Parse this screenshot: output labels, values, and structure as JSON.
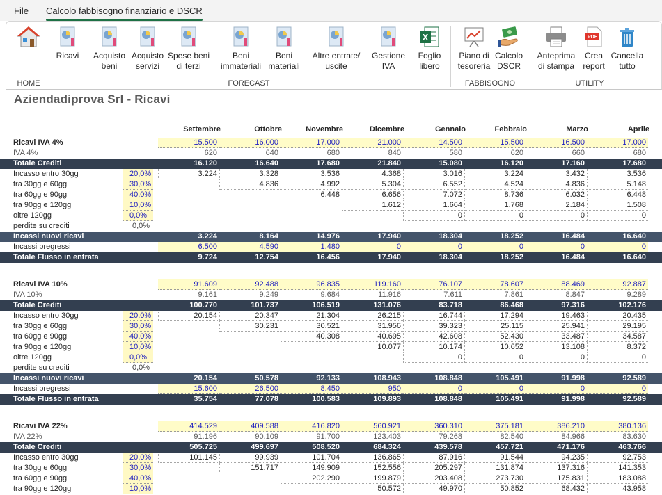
{
  "tabs": {
    "file": "File",
    "active": "Calcolo fabbisogno finanziario e DSCR"
  },
  "ribbon": {
    "home": {
      "group": "HOME"
    },
    "forecast": {
      "group": "FORECAST",
      "buttons": [
        {
          "l1": "Ricavi",
          "l2": ""
        },
        {
          "l1": "Acquisto",
          "l2": "beni"
        },
        {
          "l1": "Acquisto",
          "l2": "servizi"
        },
        {
          "l1": "Spese beni",
          "l2": "di terzi"
        },
        {
          "l1": "Beni",
          "l2": "immateriali"
        },
        {
          "l1": "Beni",
          "l2": "materiali"
        },
        {
          "l1": "Altre entrate/",
          "l2": "uscite"
        },
        {
          "l1": "Gestione",
          "l2": "IVA"
        },
        {
          "l1": "Foglio",
          "l2": "libero"
        }
      ]
    },
    "fabbisogno": {
      "group": "FABBISOGNO",
      "buttons": [
        {
          "l1": "Piano di",
          "l2": "tesoreria"
        },
        {
          "l1": "Calcolo",
          "l2": "DSCR"
        }
      ]
    },
    "utility": {
      "group": "UTILITY",
      "buttons": [
        {
          "l1": "Anteprima",
          "l2": "di stampa"
        },
        {
          "l1": "Crea",
          "l2": "report"
        },
        {
          "l1": "Cancella",
          "l2": "tutto"
        }
      ]
    }
  },
  "sheet": {
    "title": "Aziendadiprova Srl - Ricavi",
    "months": [
      "Settembre",
      "Ottobre",
      "Novembre",
      "Dicembre",
      "Gennaio",
      "Febbraio",
      "Marzo",
      "Aprile"
    ],
    "rows": [
      {
        "type": "head",
        "label": "Ricavi IVA 4%",
        "values": [
          "15.500",
          "16.000",
          "17.000",
          "21.000",
          "14.500",
          "15.500",
          "16.500",
          "17.000"
        ]
      },
      {
        "type": "sub",
        "label": "IVA 4%",
        "values": [
          "620",
          "640",
          "680",
          "840",
          "580",
          "620",
          "660",
          "680"
        ]
      },
      {
        "type": "dark",
        "label": "Totale Crediti",
        "values": [
          "16.120",
          "16.640",
          "17.680",
          "21.840",
          "15.080",
          "16.120",
          "17.160",
          "17.680"
        ]
      },
      {
        "type": "inc",
        "label": "Incasso entro 30gg",
        "pct": "20,0%",
        "start": 0,
        "values": [
          "3.224",
          "3.328",
          "3.536",
          "4.368",
          "3.016",
          "3.224",
          "3.432",
          "3.536"
        ]
      },
      {
        "type": "inc",
        "label": "tra 30gg e 60gg",
        "pct": "30,0%",
        "start": 1,
        "values": [
          "",
          "4.836",
          "4.992",
          "5.304",
          "6.552",
          "4.524",
          "4.836",
          "5.148"
        ]
      },
      {
        "type": "inc",
        "label": "tra 60gg e 90gg",
        "pct": "40,0%",
        "start": 2,
        "values": [
          "",
          "",
          "6.448",
          "6.656",
          "7.072",
          "8.736",
          "6.032",
          "6.448"
        ]
      },
      {
        "type": "inc",
        "label": "tra 90gg e 120gg",
        "pct": "10,0%",
        "start": 3,
        "values": [
          "",
          "",
          "",
          "1.612",
          "1.664",
          "1.768",
          "2.184",
          "1.508"
        ]
      },
      {
        "type": "inc",
        "label": "oltre 120gg",
        "pct": "0,0%",
        "start": 4,
        "values": [
          "",
          "",
          "",
          "",
          "0",
          "0",
          "0",
          "0"
        ]
      },
      {
        "type": "perd",
        "label": "perdite su crediti",
        "pct": "0,0%",
        "values": [
          "",
          "",
          "",
          "",
          "",
          "",
          "",
          ""
        ]
      },
      {
        "type": "dark2",
        "label": "Incassi nuovi ricavi",
        "values": [
          "3.224",
          "8.164",
          "14.976",
          "17.940",
          "18.304",
          "18.252",
          "16.484",
          "16.640"
        ]
      },
      {
        "type": "inp",
        "label": "Incassi pregressi",
        "values": [
          "6.500",
          "4.590",
          "1.480",
          "0",
          "0",
          "0",
          "0",
          "0"
        ]
      },
      {
        "type": "dark",
        "label": "Totale Flusso in entrata",
        "values": [
          "9.724",
          "12.754",
          "16.456",
          "17.940",
          "18.304",
          "18.252",
          "16.484",
          "16.640"
        ]
      },
      {
        "type": "head",
        "label": "Ricavi IVA 10%",
        "values": [
          "91.609",
          "92.488",
          "96.835",
          "119.160",
          "76.107",
          "78.607",
          "88.469",
          "92.887"
        ]
      },
      {
        "type": "sub",
        "label": "IVA 10%",
        "values": [
          "9.161",
          "9.249",
          "9.684",
          "11.916",
          "7.611",
          "7.861",
          "8.847",
          "9.289"
        ]
      },
      {
        "type": "dark",
        "label": "Totale Crediti",
        "values": [
          "100.770",
          "101.737",
          "106.519",
          "131.076",
          "83.718",
          "86.468",
          "97.316",
          "102.176"
        ]
      },
      {
        "type": "inc",
        "label": "Incasso entro 30gg",
        "pct": "20,0%",
        "start": 0,
        "values": [
          "20.154",
          "20.347",
          "21.304",
          "26.215",
          "16.744",
          "17.294",
          "19.463",
          "20.435"
        ]
      },
      {
        "type": "inc",
        "label": "tra 30gg e 60gg",
        "pct": "30,0%",
        "start": 1,
        "values": [
          "",
          "30.231",
          "30.521",
          "31.956",
          "39.323",
          "25.115",
          "25.941",
          "29.195"
        ]
      },
      {
        "type": "inc",
        "label": "tra 60gg e 90gg",
        "pct": "40,0%",
        "start": 2,
        "values": [
          "",
          "",
          "40.308",
          "40.695",
          "42.608",
          "52.430",
          "33.487",
          "34.587"
        ]
      },
      {
        "type": "inc",
        "label": "tra 90gg e 120gg",
        "pct": "10,0%",
        "start": 3,
        "values": [
          "",
          "",
          "",
          "10.077",
          "10.174",
          "10.652",
          "13.108",
          "8.372"
        ]
      },
      {
        "type": "inc",
        "label": "oltre 120gg",
        "pct": "0,0%",
        "start": 4,
        "values": [
          "",
          "",
          "",
          "",
          "0",
          "0",
          "0",
          "0"
        ]
      },
      {
        "type": "perd",
        "label": "perdite su crediti",
        "pct": "0,0%",
        "values": [
          "",
          "",
          "",
          "",
          "",
          "",
          "",
          ""
        ]
      },
      {
        "type": "dark2",
        "label": "Incassi nuovi ricavi",
        "values": [
          "20.154",
          "50.578",
          "92.133",
          "108.943",
          "108.848",
          "105.491",
          "91.998",
          "92.589"
        ]
      },
      {
        "type": "inp",
        "label": "Incassi pregressi",
        "values": [
          "15.600",
          "26.500",
          "8.450",
          "950",
          "0",
          "0",
          "0",
          "0"
        ]
      },
      {
        "type": "dark",
        "label": "Totale Flusso in entrata",
        "values": [
          "35.754",
          "77.078",
          "100.583",
          "109.893",
          "108.848",
          "105.491",
          "91.998",
          "92.589"
        ]
      },
      {
        "type": "head",
        "label": "Ricavi IVA 22%",
        "values": [
          "414.529",
          "409.588",
          "416.820",
          "560.921",
          "360.310",
          "375.181",
          "386.210",
          "380.136"
        ]
      },
      {
        "type": "sub",
        "label": "IVA 22%",
        "values": [
          "91.196",
          "90.109",
          "91.700",
          "123.403",
          "79.268",
          "82.540",
          "84.966",
          "83.630"
        ]
      },
      {
        "type": "dark",
        "label": "Totale Crediti",
        "values": [
          "505.725",
          "499.697",
          "508.520",
          "684.324",
          "439.578",
          "457.721",
          "471.176",
          "463.766"
        ]
      },
      {
        "type": "inc",
        "label": "Incasso entro 30gg",
        "pct": "20,0%",
        "start": 0,
        "values": [
          "101.145",
          "99.939",
          "101.704",
          "136.865",
          "87.916",
          "91.544",
          "94.235",
          "92.753"
        ]
      },
      {
        "type": "inc",
        "label": "tra 30gg e 60gg",
        "pct": "30,0%",
        "start": 1,
        "values": [
          "",
          "151.717",
          "149.909",
          "152.556",
          "205.297",
          "131.874",
          "137.316",
          "141.353"
        ]
      },
      {
        "type": "inc",
        "label": "tra 60gg e 90gg",
        "pct": "40,0%",
        "start": 2,
        "values": [
          "",
          "",
          "202.290",
          "199.879",
          "203.408",
          "273.730",
          "175.831",
          "183.088"
        ]
      },
      {
        "type": "inc",
        "label": "tra 90gg e 120gg",
        "pct": "10,0%",
        "start": 3,
        "values": [
          "",
          "",
          "",
          "50.572",
          "49.970",
          "50.852",
          "68.432",
          "43.958"
        ]
      }
    ]
  }
}
